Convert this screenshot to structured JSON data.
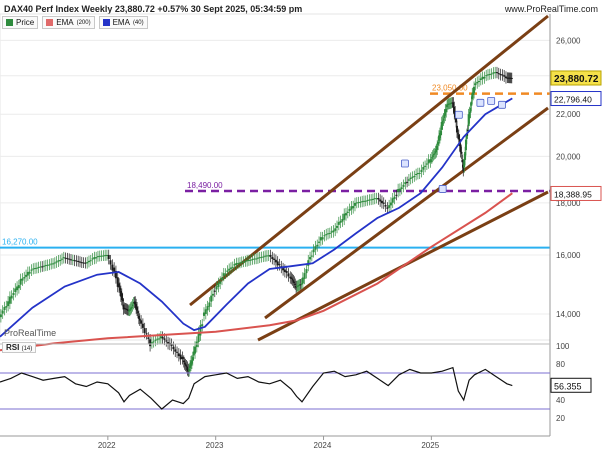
{
  "header": {
    "title": "DAX40 Perf Index Weekly 23,880.72 +0.57% 30 Sept 2025, 05:34:59 pm",
    "site": "www.ProRealTime.com",
    "brand": "ProRealTime"
  },
  "legend": [
    {
      "label": "Price",
      "suffix": "",
      "color": "#2e8b3d"
    },
    {
      "label": "EMA",
      "suffix": "(200)",
      "color": "#e06a6a"
    },
    {
      "label": "EMA",
      "suffix": "(40)",
      "color": "#2433c8"
    }
  ],
  "rsi_panel": {
    "label": "RSI",
    "suffix": "(14)"
  },
  "colors": {
    "up": "#2e8b3d",
    "down": "#1c1c1c",
    "ema200": "#d9534f",
    "ema40": "#2433c8",
    "channel": "#7a3f14",
    "support": "#2ab0f0",
    "level18490": "#7a1fa2",
    "level23050": "#f08a24"
  },
  "chart_data": [
    {
      "type": "line",
      "title": "DAX40 Perf Index Weekly",
      "xlabel": "",
      "ylabel": "",
      "x_ticks": [
        "2022",
        "2023",
        "2024",
        "2025"
      ],
      "y_ticks": [
        14000,
        16000,
        18000,
        20000,
        22000,
        24000,
        26000
      ],
      "y_tick_labels": [
        "14,000",
        "16,000",
        "18,000",
        "20,000",
        "22,000",
        "24,000",
        "26,000"
      ],
      "ylim": [
        13200,
        27600
      ],
      "xlim": [
        2021.0,
        2026.1
      ],
      "grid": true,
      "log_scale": true,
      "series": [
        {
          "name": "Price",
          "x": [
            2021.0,
            2021.1,
            2021.2,
            2021.3,
            2021.4,
            2021.5,
            2021.6,
            2021.7,
            2021.8,
            2021.9,
            2022.0,
            2022.1,
            2022.15,
            2022.2,
            2022.25,
            2022.3,
            2022.4,
            2022.5,
            2022.6,
            2022.7,
            2022.75,
            2022.8,
            2022.9,
            2023.0,
            2023.1,
            2023.2,
            2023.3,
            2023.4,
            2023.5,
            2023.6,
            2023.7,
            2023.75,
            2023.8,
            2023.9,
            2024.0,
            2024.1,
            2024.2,
            2024.3,
            2024.4,
            2024.5,
            2024.6,
            2024.7,
            2024.8,
            2024.9,
            2025.0,
            2025.05,
            2025.1,
            2025.15,
            2025.2,
            2025.25,
            2025.3,
            2025.35,
            2025.4,
            2025.5,
            2025.6,
            2025.7,
            2025.75
          ],
          "y": [
            13900,
            14500,
            15100,
            15500,
            15600,
            15700,
            15900,
            15800,
            15700,
            15950,
            16000,
            15000,
            14200,
            14100,
            14400,
            13800,
            13100,
            13300,
            13000,
            12600,
            12300,
            12800,
            14000,
            14800,
            15400,
            15700,
            15800,
            15900,
            16000,
            15600,
            15200,
            14900,
            15000,
            16100,
            16700,
            16900,
            17500,
            18000,
            18100,
            18200,
            17800,
            18500,
            19000,
            19300,
            19900,
            20300,
            21500,
            22500,
            22600,
            21000,
            19500,
            21800,
            23500,
            24000,
            24200,
            23900,
            23880
          ]
        },
        {
          "name": "EMA (40)",
          "x": [
            2021.0,
            2021.3,
            2021.6,
            2021.9,
            2022.1,
            2022.3,
            2022.5,
            2022.7,
            2022.8,
            2022.9,
            2023.1,
            2023.3,
            2023.5,
            2023.7,
            2023.9,
            2024.1,
            2024.3,
            2024.5,
            2024.7,
            2024.9,
            2025.1,
            2025.3,
            2025.5,
            2025.75
          ],
          "y": [
            13300,
            14200,
            14900,
            15300,
            15400,
            15000,
            14400,
            13700,
            13500,
            13600,
            14300,
            15000,
            15500,
            15600,
            15700,
            16200,
            16800,
            17400,
            17800,
            18400,
            19500,
            20900,
            22000,
            22800
          ]
        },
        {
          "name": "EMA (200)",
          "x": [
            2021.0,
            2021.5,
            2022.0,
            2022.5,
            2023.0,
            2023.5,
            2023.75,
            2024.0,
            2024.5,
            2025.0,
            2025.5,
            2025.75
          ],
          "y": [
            12900,
            13100,
            13250,
            13350,
            13450,
            13650,
            13800,
            14100,
            15000,
            16300,
            17600,
            18400
          ]
        }
      ],
      "price_tag": "23,880.72",
      "ema40_tag": "22,796.40",
      "ema200_tag": "18,388.95",
      "annotations": [
        {
          "label": "23,050.00",
          "y": 23050,
          "color": "#f08a24"
        },
        {
          "label": "18,490.00",
          "y": 18490,
          "color": "#7a1fa2"
        },
        {
          "label": "16,270.00",
          "y": 16270,
          "color": "#2ab0f0"
        }
      ]
    },
    {
      "type": "line",
      "title": "RSI (14)",
      "ylim": [
        0,
        100
      ],
      "y_ticks": [
        0,
        20,
        40,
        60,
        80,
        100
      ],
      "y_tick_labels": [
        "0",
        "20",
        "40",
        "60",
        "80",
        "100"
      ],
      "bands": [
        30,
        70
      ],
      "current": "56.355",
      "series": [
        {
          "name": "RSI",
          "x": [
            2021.0,
            2021.1,
            2021.2,
            2021.3,
            2021.4,
            2021.5,
            2021.6,
            2021.7,
            2021.8,
            2021.9,
            2022.0,
            2022.1,
            2022.15,
            2022.2,
            2022.3,
            2022.4,
            2022.5,
            2022.6,
            2022.7,
            2022.75,
            2022.8,
            2022.9,
            2023.0,
            2023.1,
            2023.2,
            2023.3,
            2023.4,
            2023.5,
            2023.6,
            2023.7,
            2023.75,
            2023.8,
            2023.9,
            2024.0,
            2024.1,
            2024.2,
            2024.3,
            2024.4,
            2024.5,
            2024.6,
            2024.7,
            2024.8,
            2024.9,
            2025.0,
            2025.1,
            2025.2,
            2025.25,
            2025.3,
            2025.35,
            2025.4,
            2025.5,
            2025.6,
            2025.7,
            2025.75
          ],
          "y": [
            60,
            64,
            70,
            66,
            62,
            64,
            66,
            58,
            55,
            60,
            58,
            48,
            38,
            45,
            52,
            42,
            30,
            40,
            36,
            42,
            58,
            66,
            68,
            70,
            64,
            66,
            60,
            58,
            62,
            52,
            44,
            38,
            55,
            70,
            72,
            66,
            68,
            72,
            64,
            56,
            68,
            74,
            70,
            70,
            72,
            76,
            50,
            40,
            62,
            68,
            74,
            66,
            58,
            56
          ]
        }
      ]
    }
  ]
}
